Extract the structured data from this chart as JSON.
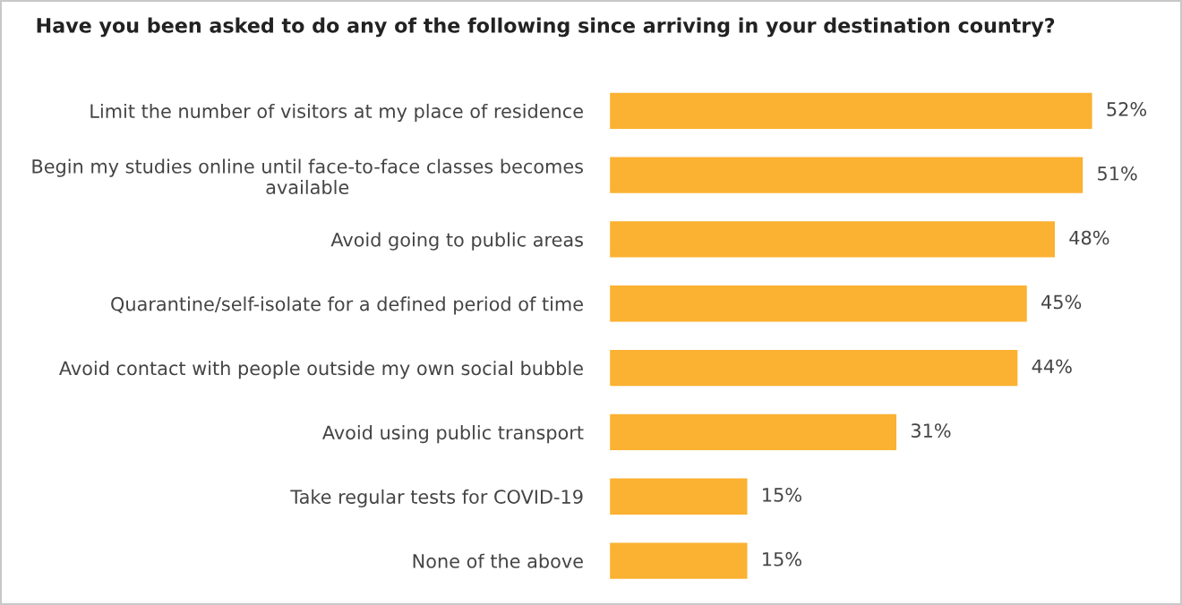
{
  "chart_data": {
    "type": "bar",
    "orientation": "horizontal",
    "title": "Have you been asked to do any of the following since arriving in your destination country?",
    "categories": [
      "Limit the number of visitors at my place of residence",
      "Begin my studies online until face-to-face classes becomes\navailable",
      "Avoid going to public areas",
      "Quarantine/self-isolate for a defined period of time",
      "Avoid contact with people outside my own social bubble",
      "Avoid using public transport",
      "Take regular tests for COVID-19",
      "None of the above"
    ],
    "values": [
      52,
      51,
      48,
      45,
      44,
      31,
      15,
      15
    ],
    "value_labels": [
      "52%",
      "51%",
      "48%",
      "45%",
      "44%",
      "31%",
      "15%",
      "15%"
    ],
    "color": "#fbb131",
    "tick_labels": "y",
    "grid": false,
    "legend": false
  }
}
